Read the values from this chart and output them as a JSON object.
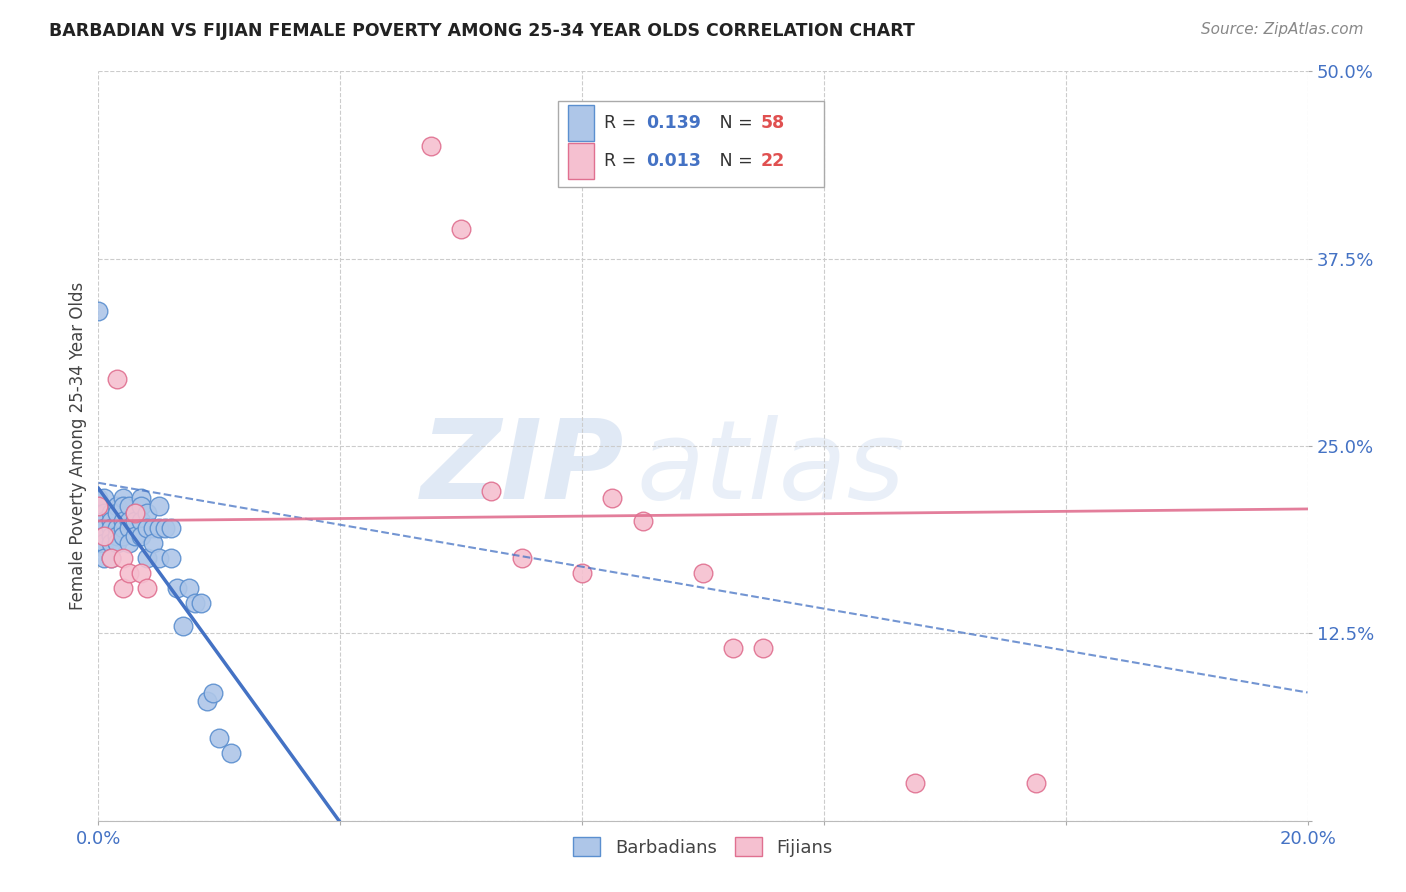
{
  "title": "BARBADIAN VS FIJIAN FEMALE POVERTY AMONG 25-34 YEAR OLDS CORRELATION CHART",
  "source": "Source: ZipAtlas.com",
  "ylabel": "Female Poverty Among 25-34 Year Olds",
  "xlim": [
    0.0,
    0.2
  ],
  "ylim": [
    0.0,
    0.5
  ],
  "blue_color": "#aec6e8",
  "blue_edge": "#5b8fcf",
  "blue_line": "#4472c4",
  "pink_color": "#f5c0d0",
  "pink_edge": "#e07090",
  "pink_line": "#e07090",
  "grid_color": "#cccccc",
  "bg_color": "#ffffff",
  "title_color": "#222222",
  "source_color": "#888888",
  "tick_color": "#4472c4",
  "ylabel_color": "#444444",
  "legend_R_color": "#4472c4",
  "legend_N_color": "#e05050",
  "R_blue": "0.139",
  "N_blue": "58",
  "R_pink": "0.013",
  "N_pink": "22",
  "legend_blue_label": "Barbadians",
  "legend_pink_label": "Fijians",
  "barb_x": [
    0.0,
    0.0,
    0.0,
    0.0,
    0.001,
    0.001,
    0.001,
    0.001,
    0.001,
    0.001,
    0.001,
    0.002,
    0.002,
    0.002,
    0.002,
    0.002,
    0.002,
    0.003,
    0.003,
    0.003,
    0.003,
    0.003,
    0.004,
    0.004,
    0.004,
    0.004,
    0.004,
    0.005,
    0.005,
    0.005,
    0.005,
    0.006,
    0.006,
    0.006,
    0.007,
    0.007,
    0.007,
    0.007,
    0.008,
    0.008,
    0.008,
    0.009,
    0.009,
    0.01,
    0.01,
    0.01,
    0.011,
    0.012,
    0.012,
    0.013,
    0.014,
    0.015,
    0.016,
    0.017,
    0.018,
    0.019,
    0.02,
    0.022
  ],
  "barb_y": [
    0.34,
    0.215,
    0.195,
    0.185,
    0.215,
    0.205,
    0.2,
    0.195,
    0.19,
    0.185,
    0.175,
    0.205,
    0.2,
    0.195,
    0.19,
    0.185,
    0.175,
    0.21,
    0.205,
    0.195,
    0.19,
    0.185,
    0.215,
    0.21,
    0.2,
    0.195,
    0.19,
    0.21,
    0.2,
    0.195,
    0.185,
    0.205,
    0.2,
    0.19,
    0.215,
    0.21,
    0.2,
    0.19,
    0.205,
    0.195,
    0.175,
    0.195,
    0.185,
    0.21,
    0.195,
    0.175,
    0.195,
    0.195,
    0.175,
    0.155,
    0.13,
    0.155,
    0.145,
    0.145,
    0.08,
    0.085,
    0.055,
    0.045
  ],
  "fij_x": [
    0.0,
    0.001,
    0.002,
    0.003,
    0.004,
    0.004,
    0.005,
    0.006,
    0.007,
    0.008,
    0.055,
    0.06,
    0.065,
    0.07,
    0.08,
    0.085,
    0.09,
    0.1,
    0.105,
    0.11,
    0.135,
    0.155
  ],
  "fij_y": [
    0.21,
    0.19,
    0.175,
    0.295,
    0.175,
    0.155,
    0.165,
    0.205,
    0.165,
    0.155,
    0.45,
    0.395,
    0.22,
    0.175,
    0.165,
    0.215,
    0.2,
    0.165,
    0.115,
    0.115,
    0.025,
    0.025
  ]
}
